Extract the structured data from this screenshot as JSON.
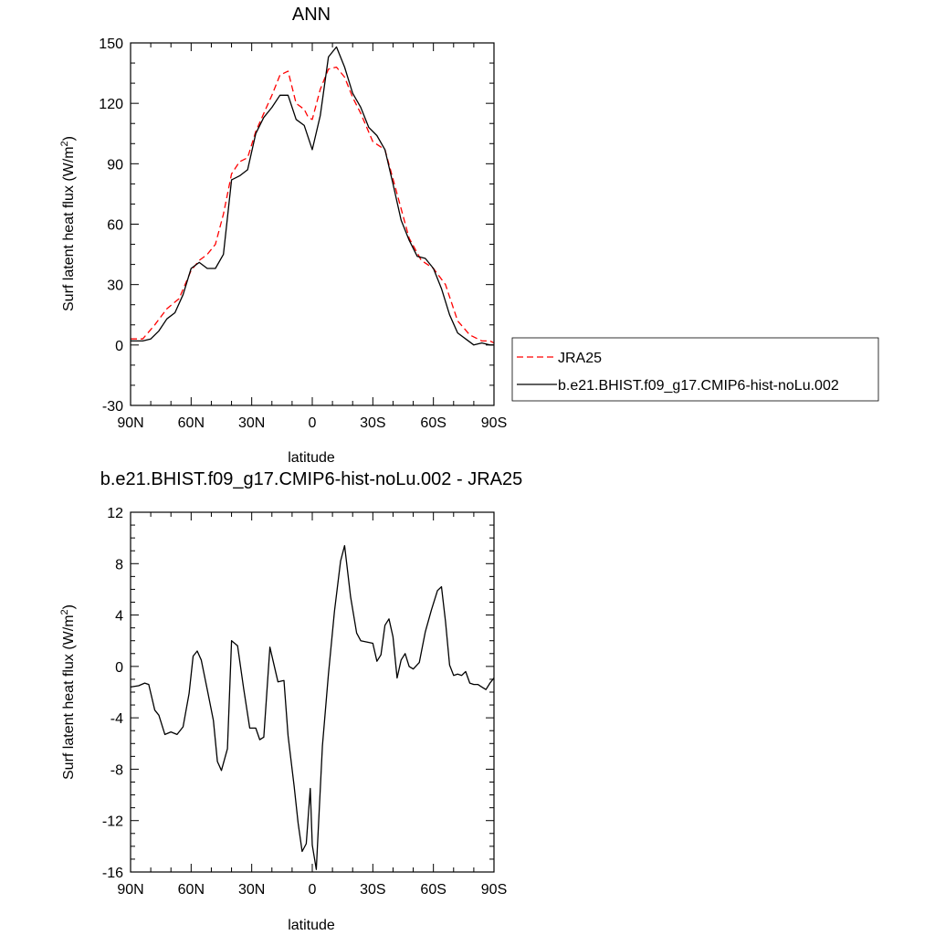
{
  "chart_data": [
    {
      "type": "line",
      "title": "ANN",
      "xlabel": "latitude",
      "ylabel": "Surf latent heat flux (W/m",
      "ylabel_sup": "2",
      "ylabel_tail": ")",
      "xlim": [
        90,
        -90
      ],
      "ylim": [
        -30,
        150
      ],
      "x_ticks": [
        90,
        60,
        30,
        0,
        -30,
        -60,
        -90
      ],
      "x_tick_labels": [
        "90N",
        "60N",
        "30N",
        "0",
        "30S",
        "60S",
        "90S"
      ],
      "y_ticks": [
        -30,
        0,
        30,
        60,
        90,
        120,
        150
      ],
      "y_tick_labels": [
        "-30",
        "0",
        "30",
        "60",
        "90",
        "120",
        "150"
      ],
      "grid": false,
      "legend_position": "right",
      "series": [
        {
          "name": "JRA25",
          "color": "#ff0000",
          "dash": "dashed",
          "x": [
            90,
            84,
            78,
            72,
            66,
            60,
            56,
            52,
            48,
            44,
            40,
            36,
            32,
            28,
            24,
            20,
            16,
            12,
            8,
            4,
            2,
            0,
            -4,
            -8,
            -12,
            -16,
            -20,
            -24,
            -30,
            -36,
            -42,
            -48,
            -54,
            -60,
            -66,
            -72,
            -78,
            -84,
            -88,
            -90
          ],
          "values": [
            3,
            3,
            10,
            18,
            23,
            37,
            42,
            45,
            50,
            65,
            85,
            91,
            93,
            106,
            115,
            124,
            134,
            136,
            120,
            117,
            113,
            112,
            127,
            137,
            138,
            133,
            123,
            115,
            101,
            97,
            75,
            53,
            42,
            38,
            30,
            12,
            5,
            2,
            2,
            1
          ]
        },
        {
          "name": "b.e21.BHIST.f09_g17.CMIP6-hist-noLu.002",
          "color": "#000000",
          "dash": "solid",
          "x": [
            90,
            84,
            80,
            76,
            72,
            68,
            64,
            60,
            56,
            52,
            48,
            44,
            40,
            36,
            32,
            28,
            24,
            20,
            16,
            12,
            8,
            4,
            0,
            -4,
            -8,
            -12,
            -16,
            -20,
            -24,
            -28,
            -32,
            -36,
            -40,
            -44,
            -48,
            -52,
            -56,
            -60,
            -64,
            -68,
            -72,
            -76,
            -80,
            -84,
            -88,
            -90
          ],
          "values": [
            2,
            2,
            3,
            7,
            13,
            16,
            25,
            38,
            41,
            38,
            38,
            45,
            82,
            84,
            87,
            105,
            113,
            118,
            124,
            124,
            112,
            109,
            97,
            114,
            143,
            148,
            138,
            125,
            118,
            108,
            104,
            97,
            80,
            62,
            52,
            44,
            43,
            38,
            28,
            15,
            6,
            3,
            0,
            1,
            0,
            0
          ]
        }
      ]
    },
    {
      "type": "line",
      "title": "b.e21.BHIST.f09_g17.CMIP6-hist-noLu.002 - JRA25",
      "xlabel": "latitude",
      "ylabel": "Surf latent heat flux (W/m",
      "ylabel_sup": "2",
      "ylabel_tail": ")",
      "xlim": [
        90,
        -90
      ],
      "ylim": [
        -16,
        12
      ],
      "x_ticks": [
        90,
        60,
        30,
        0,
        -30,
        -60,
        -90
      ],
      "x_tick_labels": [
        "90N",
        "60N",
        "30N",
        "0",
        "30S",
        "60S",
        "90S"
      ],
      "y_ticks": [
        -16,
        -12,
        -8,
        -4,
        0,
        4,
        8,
        12
      ],
      "y_tick_labels": [
        "-16",
        "-12",
        "-8",
        "-4",
        "0",
        "4",
        "8",
        "12"
      ],
      "grid": false,
      "series": [
        {
          "color": "#000000",
          "dash": "solid",
          "x": [
            90,
            86,
            83,
            81,
            78,
            76,
            73,
            70,
            67,
            64,
            61,
            59,
            57,
            55,
            52,
            49,
            47,
            45,
            42,
            40,
            37,
            34,
            31,
            28,
            26,
            24,
            21,
            17,
            14,
            12,
            9,
            7,
            5,
            3,
            1,
            0,
            -2,
            -5,
            -8,
            -11,
            -14,
            -16,
            -19,
            -22,
            -24,
            -27,
            -30,
            -32,
            -34,
            -36,
            -38,
            -40,
            -42,
            -44,
            -46,
            -48,
            -50,
            -53,
            -56,
            -59,
            -62,
            -64,
            -66,
            -68,
            -70,
            -72,
            -74,
            -76,
            -78,
            -80,
            -82,
            -84,
            -86,
            -88,
            -90
          ],
          "values": [
            -1.6,
            -1.5,
            -1.3,
            -1.4,
            -3.4,
            -3.8,
            -5.3,
            -5.1,
            -5.3,
            -4.7,
            -2.1,
            0.8,
            1.2,
            0.5,
            -1.8,
            -4.2,
            -7.4,
            -8.1,
            -6.4,
            2.0,
            1.6,
            -1.7,
            -4.8,
            -4.8,
            -5.7,
            -5.5,
            1.5,
            -1.2,
            -1.1,
            -5.4,
            -9.3,
            -12.2,
            -14.4,
            -13.8,
            -9.5,
            -13.9,
            -15.8,
            -6.2,
            -0.6,
            4.3,
            8.2,
            9.4,
            5.4,
            2.6,
            2.0,
            1.9,
            1.8,
            0.4,
            0.9,
            3.2,
            3.7,
            2.3,
            -0.9,
            0.5,
            1.0,
            0.0,
            -0.2,
            0.3,
            2.7,
            4.4,
            5.9,
            6.2,
            3.5,
            0.1,
            -0.7,
            -0.6,
            -0.7,
            -0.4,
            -1.3,
            -1.4,
            -1.4,
            -1.6,
            -1.8,
            -1.3,
            -0.9
          ]
        }
      ]
    }
  ],
  "legend": {
    "labels": [
      "JRA25",
      "b.e21.BHIST.f09_g17.CMIP6-hist-noLu.002"
    ]
  }
}
